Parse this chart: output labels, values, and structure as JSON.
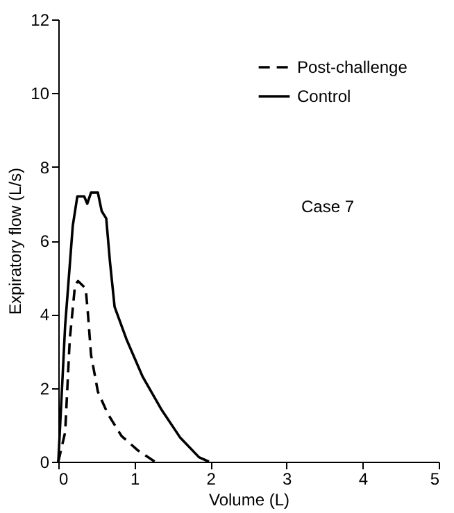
{
  "chart_data": {
    "type": "line",
    "xlabel": "Volume (L)",
    "ylabel": "Expiratory flow (L/s)",
    "xlim": [
      0,
      5
    ],
    "xticks": [
      0,
      1,
      2,
      3,
      4,
      5
    ],
    "ylim": [
      0,
      12
    ],
    "yticks": [
      0,
      2,
      4,
      6,
      8,
      10,
      12
    ],
    "grid": false,
    "legend": "top right",
    "marker": "none",
    "annotations": [
      "Case 7"
    ],
    "series": [
      {
        "name": "Post-challenge",
        "color": "#000000",
        "line_style": "dashed",
        "x": [
          0,
          0.09,
          0.15,
          0.22,
          0.26,
          0.36,
          0.39,
          0.43,
          0.52,
          0.65,
          0.83,
          1.05,
          1.27
        ],
        "values": [
          0,
          0.8,
          3.3,
          4.8,
          4.9,
          4.7,
          4.0,
          2.9,
          1.9,
          1.3,
          0.7,
          0.3,
          0
        ]
      },
      {
        "name": "Control",
        "color": "#000000",
        "line_style": "solid",
        "x": [
          0,
          0.09,
          0.12,
          0.19,
          0.25,
          0.34,
          0.38,
          0.43,
          0.52,
          0.57,
          0.63,
          0.68,
          0.74,
          0.9,
          1.11,
          1.36,
          1.6,
          1.85,
          1.98
        ],
        "values": [
          0,
          3.7,
          4.5,
          6.4,
          7.2,
          7.2,
          7.0,
          7.3,
          7.3,
          6.8,
          6.6,
          5.4,
          4.2,
          3.3,
          2.3,
          1.4,
          0.66,
          0.12,
          0
        ]
      }
    ]
  }
}
